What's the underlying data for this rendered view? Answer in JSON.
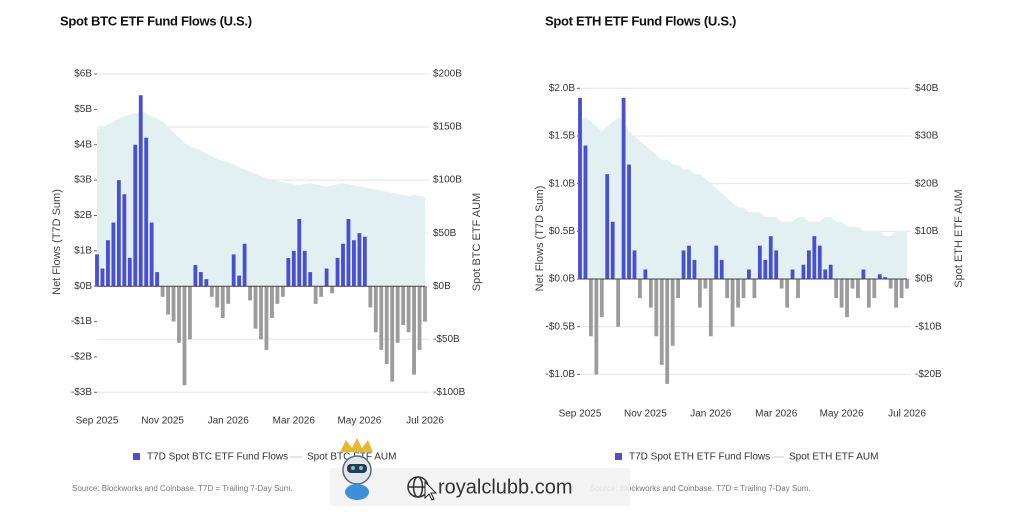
{
  "chart_data": [
    {
      "type": "combo",
      "title": "Spot BTC ETF Fund Flows (U.S.)",
      "y_label": "Net Flows (T7D Sum)",
      "y2_label": "Spot BTC ETF AUM",
      "source": "Source: Blockworks and Coinbase. T7D = Trailing 7-Day Sum.",
      "categories": [
        "Sep 2025",
        null,
        null,
        null,
        null,
        null,
        null,
        null,
        null,
        null,
        null,
        null,
        "Nov 2025",
        null,
        null,
        null,
        null,
        null,
        null,
        null,
        null,
        null,
        null,
        null,
        "Jan 2026",
        null,
        null,
        null,
        null,
        null,
        null,
        null,
        null,
        null,
        null,
        null,
        "Mar 2026",
        null,
        null,
        null,
        null,
        null,
        null,
        null,
        null,
        null,
        null,
        null,
        "May 2026",
        null,
        null,
        null,
        null,
        null,
        null,
        null,
        null,
        null,
        null,
        null,
        "Jul 2026"
      ],
      "ylim": [
        -3.5,
        6
      ],
      "yticks": [
        {
          "value": 6,
          "label": "$6B"
        },
        {
          "value": 5,
          "label": "$5B"
        },
        {
          "value": 4,
          "label": "$4B"
        },
        {
          "value": 3,
          "label": "$3B"
        },
        {
          "value": 2,
          "label": "$2B"
        },
        {
          "value": 1,
          "label": "$1B"
        },
        {
          "value": 0,
          "label": "$0B"
        },
        {
          "value": -1,
          "label": "-$1B"
        },
        {
          "value": -2,
          "label": "-$2B"
        },
        {
          "value": -3,
          "label": "-$3B"
        }
      ],
      "y2lim": [
        -116.7,
        200
      ],
      "y2ticks": [
        {
          "value": 200,
          "label": "$200B"
        },
        {
          "value": 150,
          "label": "$150B"
        },
        {
          "value": 100,
          "label": "$100B"
        },
        {
          "value": 50,
          "label": "$50B"
        },
        {
          "value": 0,
          "label": "$0B"
        },
        {
          "value": -50,
          "label": "-$50B"
        },
        {
          "value": -100,
          "label": "-$100B"
        }
      ],
      "grid": true,
      "series": [
        {
          "name": "T7D Spot BTC ETF Fund Flows",
          "type": "bar",
          "color": "#4a4fd1",
          "negative_color": "#9c9c9c",
          "values": [
            0.9,
            0.5,
            1.3,
            1.8,
            3.0,
            2.6,
            0.8,
            4.0,
            5.4,
            4.2,
            1.8,
            0.4,
            -0.3,
            -0.8,
            -1.0,
            -1.6,
            -2.8,
            -1.5,
            0.6,
            0.4,
            0.2,
            -0.3,
            -0.6,
            -0.9,
            -0.5,
            0.9,
            0.3,
            1.2,
            -0.4,
            -1.2,
            -1.5,
            -1.8,
            -0.9,
            -0.5,
            -0.3,
            0.8,
            1.0,
            1.9,
            1.0,
            0.4,
            -0.5,
            -0.3,
            0.5,
            -0.2,
            0.8,
            1.2,
            1.9,
            1.3,
            1.5,
            1.4,
            -0.6,
            -1.3,
            -1.8,
            -2.2,
            -2.7,
            -1.6,
            -1.1,
            -1.3,
            -2.5,
            -1.8,
            -1.0
          ]
        },
        {
          "name": "Spot BTC ETF AUM",
          "type": "area",
          "axis": "y2",
          "color": "#e2f0f2",
          "values": [
            148,
            150,
            152,
            155,
            158,
            160,
            162,
            163,
            165,
            163,
            160,
            158,
            155,
            150,
            145,
            140,
            135,
            132,
            130,
            128,
            125,
            122,
            120,
            118,
            117,
            115,
            112,
            110,
            108,
            106,
            104,
            102,
            100,
            99,
            98,
            97,
            96,
            95,
            96,
            97,
            96,
            95,
            94,
            95,
            96,
            97,
            96,
            95,
            94,
            93,
            92,
            91,
            90,
            89,
            88,
            87,
            86,
            85,
            86,
            85,
            84
          ]
        }
      ]
    },
    {
      "type": "combo",
      "title": "Spot ETH ETF Fund Flows (U.S.)",
      "y_label": "Net Flows (T7D Sum)",
      "y2_label": "Spot ETH ETF AUM",
      "source": "Source: Blockworks and Coinbase. T7D = Trailing 7-Day Sum.",
      "categories": [
        "Sep 2025",
        null,
        null,
        null,
        null,
        null,
        null,
        null,
        null,
        null,
        null,
        null,
        "Nov 2025",
        null,
        null,
        null,
        null,
        null,
        null,
        null,
        null,
        null,
        null,
        null,
        "Jan 2026",
        null,
        null,
        null,
        null,
        null,
        null,
        null,
        null,
        null,
        null,
        null,
        "Mar 2026",
        null,
        null,
        null,
        null,
        null,
        null,
        null,
        null,
        null,
        null,
        null,
        "May 2026",
        null,
        null,
        null,
        null,
        null,
        null,
        null,
        null,
        null,
        null,
        null,
        "Jul 2026"
      ],
      "ylim": [
        -1.3,
        2.15
      ],
      "yticks": [
        {
          "value": 2.0,
          "label": "$2.0B"
        },
        {
          "value": 1.5,
          "label": "$1.5B"
        },
        {
          "value": 1.0,
          "label": "$1.0B"
        },
        {
          "value": 0.5,
          "label": "$0.5B"
        },
        {
          "value": 0,
          "label": "$0.0B"
        },
        {
          "value": -0.5,
          "label": "-$0.5B"
        },
        {
          "value": -1.0,
          "label": "-$1.0B"
        }
      ],
      "y2lim": [
        -26,
        43
      ],
      "y2ticks": [
        {
          "value": 40,
          "label": "$40B"
        },
        {
          "value": 30,
          "label": "$30B"
        },
        {
          "value": 20,
          "label": "$20B"
        },
        {
          "value": 10,
          "label": "$10B"
        },
        {
          "value": 0,
          "label": "$0B"
        },
        {
          "value": -10,
          "label": "-$10B"
        },
        {
          "value": -20,
          "label": "-$20B"
        }
      ],
      "grid": true,
      "series": [
        {
          "name": "T7D Spot ETH ETF Fund Flows",
          "type": "bar",
          "color": "#4a4fd1",
          "negative_color": "#9c9c9c",
          "values": [
            1.9,
            1.4,
            -0.6,
            -1.0,
            -0.4,
            1.1,
            0.6,
            -0.5,
            1.9,
            1.2,
            0.3,
            -0.2,
            0.1,
            -0.3,
            -0.6,
            -0.9,
            -1.1,
            -0.7,
            -0.2,
            0.3,
            0.35,
            0.2,
            -0.3,
            -0.1,
            -0.6,
            0.35,
            0.2,
            -0.2,
            -0.5,
            -0.3,
            -0.2,
            0.1,
            -0.2,
            0.35,
            0.2,
            0.45,
            0.3,
            -0.1,
            -0.3,
            0.1,
            -0.2,
            0.15,
            0.3,
            0.45,
            0.35,
            0.1,
            0.15,
            -0.2,
            -0.3,
            -0.4,
            -0.1,
            -0.2,
            0.1,
            -0.3,
            -0.2,
            0.05,
            0.02,
            -0.1,
            -0.3,
            -0.2,
            -0.1
          ]
        },
        {
          "name": "Spot ETH ETF AUM",
          "type": "area",
          "axis": "y2",
          "color": "#e2f0f2",
          "values": [
            33,
            34,
            33,
            32,
            31,
            32,
            33,
            34,
            33,
            31,
            30,
            29,
            28,
            27,
            26,
            25,
            25,
            24,
            24,
            23,
            23,
            22,
            22,
            21,
            20,
            19,
            18,
            17,
            16,
            15,
            15,
            14,
            14,
            14,
            13,
            13,
            13,
            12,
            12,
            12,
            13,
            13,
            12,
            12,
            12,
            13,
            13,
            12,
            12,
            11,
            11,
            11,
            10,
            10,
            10,
            10,
            9,
            9,
            10,
            10,
            10
          ]
        }
      ]
    }
  ],
  "watermark": "royalclubb.com"
}
